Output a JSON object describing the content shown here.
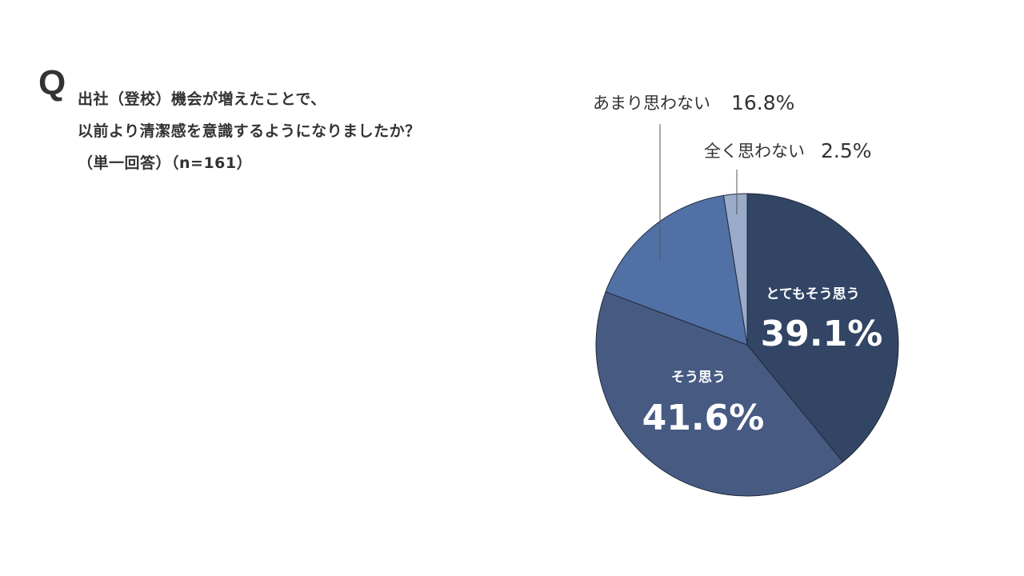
{
  "question": {
    "mark": "Q",
    "line1": "出社（登校）機会が増えたことで、",
    "line2": "以前より清潔感を意識するようになりましたか？",
    "line3": "（単一回答）（n=161）"
  },
  "chart_data": {
    "type": "pie",
    "categories": [
      "とてもそう思う",
      "そう思う",
      "あまり思わない",
      "全く思わない"
    ],
    "values": [
      39.1,
      41.6,
      16.8,
      2.5
    ],
    "value_labels": [
      "39.1%",
      "41.6%",
      "16.8%",
      "2.5%"
    ],
    "colors": [
      "#324565",
      "#475a82",
      "#5171a6",
      "#9aacc9"
    ],
    "start_angle": "12 o'clock",
    "direction": "clockwise",
    "label_placement": [
      "inside",
      "inside",
      "outside-top",
      "outside-top"
    ]
  }
}
